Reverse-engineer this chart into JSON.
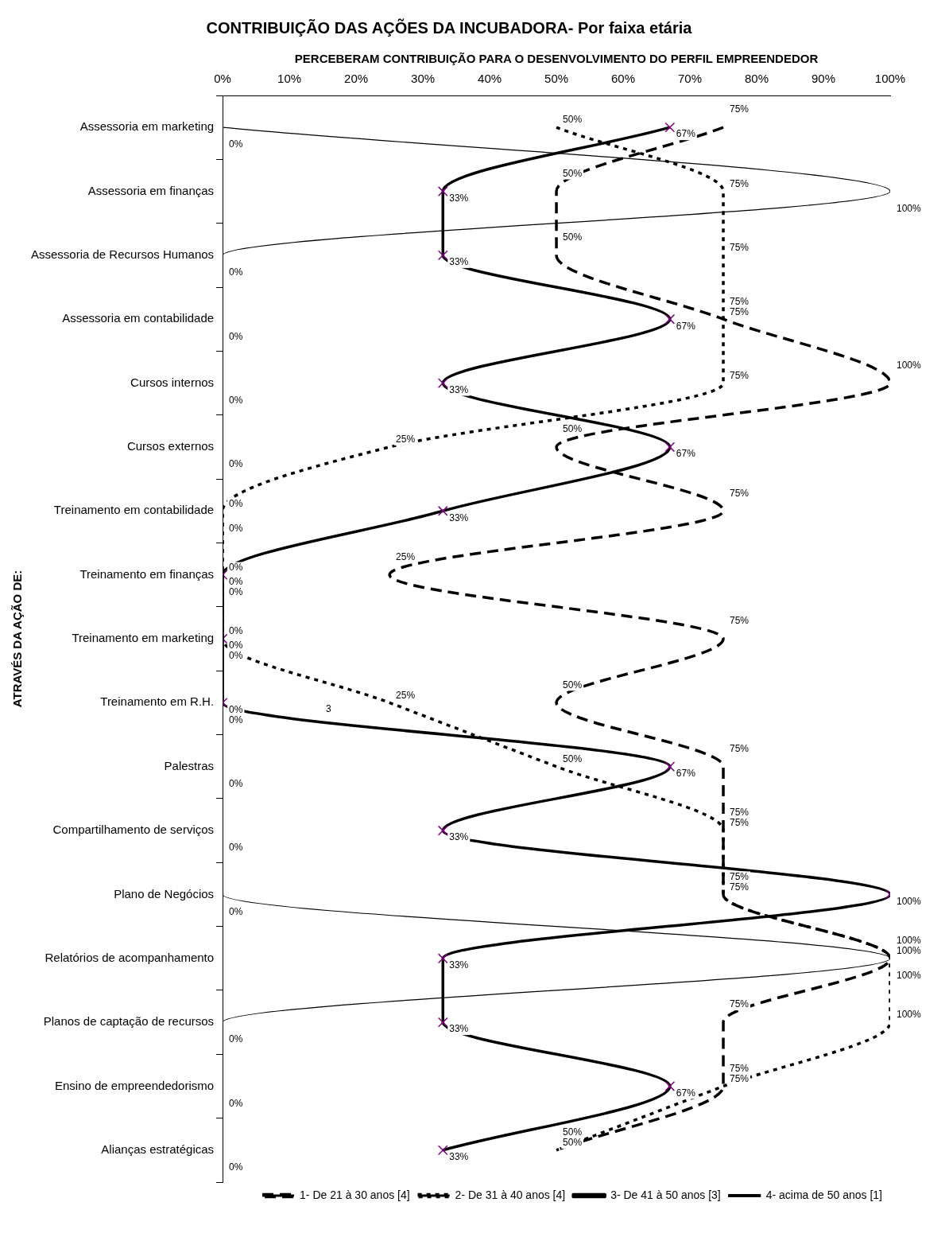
{
  "chart_data": {
    "type": "line",
    "orientation": "horizontal",
    "title": "CONTRIBUIÇÃO DAS AÇÕES DA INCUBADORA- Por faixa etária",
    "xlabel": "PERCEBERAM CONTRIBUIÇÃO PARA O DESENVOLVIMENTO DO PERFIL EMPREENDEDOR",
    "ylabel": "ATRAVÉS DA AÇÃO DE:",
    "categories": [
      "Assessoria em marketing",
      "Assessoria em finanças",
      "Assessoria de Recursos Humanos",
      "Assessoria em contabilidade",
      "Cursos internos",
      "Cursos externos",
      "Treinamento em contabilidade",
      "Treinamento em finanças",
      "Treinamento em marketing",
      "Treinamento em R.H.",
      "Palestras",
      "Compartilhamento de serviços",
      "Plano de Negócios",
      "Relatórios de acompanhamento",
      "Planos de captação de recursos",
      "Ensino de empreendedorismo",
      "Alianças estratégicas"
    ],
    "series": [
      {
        "name": "1- De 21 à 30 anos [4]",
        "color": "#000000",
        "line_style": "dashed",
        "marker": "none",
        "values": [
          75,
          50,
          50,
          75,
          100,
          50,
          75,
          25,
          75,
          50,
          75,
          75,
          75,
          100,
          75,
          75,
          50
        ],
        "value_labels": [
          "75%",
          "50%",
          "50%",
          "75%",
          "100%",
          "50%",
          "75%",
          "25%",
          "75%",
          "50%",
          "75%",
          "75%",
          "75%",
          "100%",
          "75%",
          "75%",
          "50%"
        ]
      },
      {
        "name": "2- De 31 à 40 anos [4]",
        "color": "#000000",
        "line_style": "dotted",
        "marker": "none",
        "values": [
          50,
          75,
          75,
          75,
          75,
          25,
          0,
          0,
          0,
          25,
          50,
          75,
          75,
          100,
          100,
          75,
          50
        ],
        "value_labels": [
          "50%",
          "75%",
          "75%",
          "75%",
          "75%",
          "25%",
          "0%",
          "0%",
          "0%",
          "25%",
          "50%",
          "75%",
          "75%",
          "100%",
          "100%",
          "75%",
          "50%"
        ]
      },
      {
        "name": "3- De 41 à 50 anos [3]",
        "color": "#000000",
        "line_style": "solid",
        "marker": "cross",
        "values": [
          67,
          33,
          33,
          67,
          33,
          67,
          33,
          0,
          0,
          0,
          67,
          33,
          100,
          33,
          33,
          67,
          33
        ],
        "value_labels": [
          "67%",
          "33%",
          "33%",
          "67%",
          "33%",
          "67%",
          "33%",
          "0%",
          "0%",
          "0%",
          "67%",
          "33%",
          "100%",
          "33%",
          "33%",
          "67%",
          "33%"
        ]
      },
      {
        "name": "4- acima de 50 anos [1]",
        "color": "#000000",
        "line_style": "solid",
        "marker": "none",
        "values": [
          0,
          100,
          0,
          0,
          0,
          0,
          0,
          0,
          0,
          0,
          0,
          0,
          0,
          100,
          0,
          0,
          0
        ],
        "value_labels": [
          "0%",
          "100%",
          "0%",
          "0%",
          "0%",
          "0%",
          "0%",
          "0%",
          "0%",
          "0%",
          "0%",
          "0%",
          "0%",
          "100%",
          "0%",
          "0%",
          "0%"
        ]
      }
    ],
    "annotations": [
      "3"
    ],
    "xlim": [
      0,
      100
    ],
    "xticks": [
      {
        "value": 0,
        "label": "0%"
      },
      {
        "value": 10,
        "label": "10%"
      },
      {
        "value": 20,
        "label": "20%"
      },
      {
        "value": 30,
        "label": "30%"
      },
      {
        "value": 40,
        "label": "40%"
      },
      {
        "value": 50,
        "label": "50%"
      },
      {
        "value": 60,
        "label": "60%"
      },
      {
        "value": 70,
        "label": "70%"
      },
      {
        "value": 80,
        "label": "80%"
      },
      {
        "value": 90,
        "label": "90%"
      },
      {
        "value": 100,
        "label": "100%"
      }
    ],
    "grid": false,
    "legend": "bottom right"
  }
}
